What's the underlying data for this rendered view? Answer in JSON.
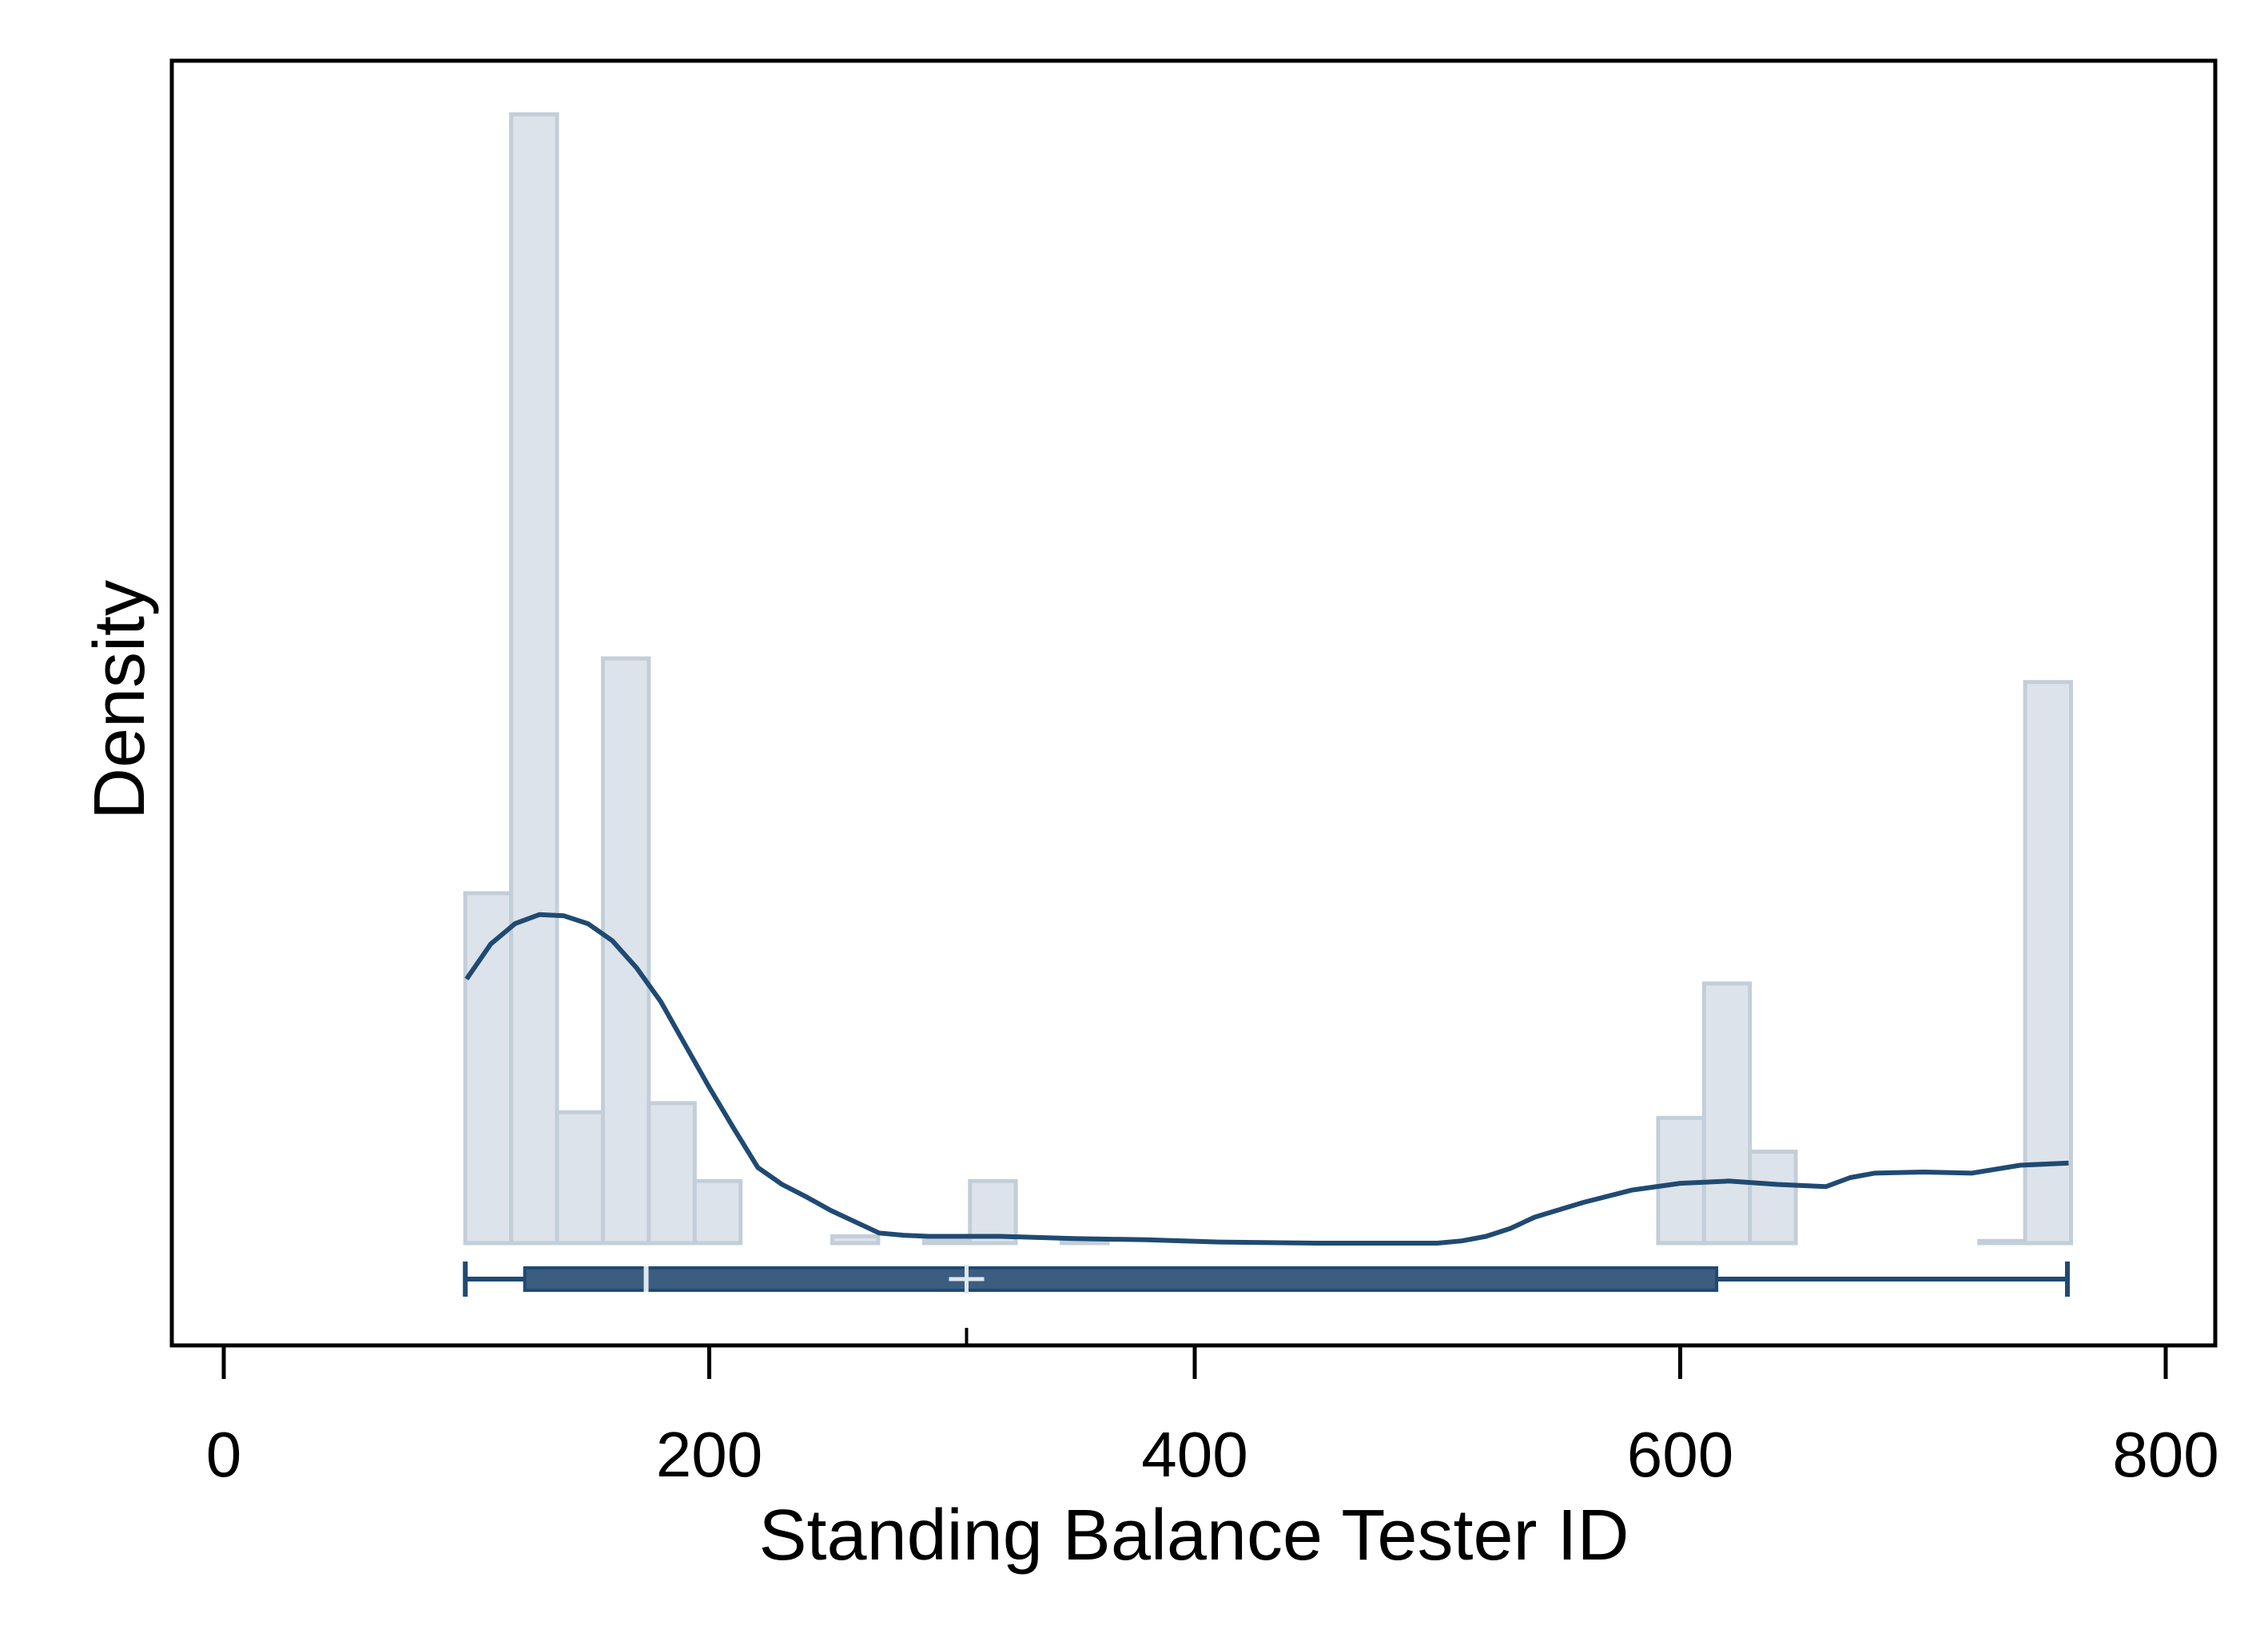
{
  "chart_data": {
    "type": "histogram",
    "xlabel": "Standing Balance Tester ID",
    "ylabel": "Density",
    "xlim": [
      -20,
      822
    ],
    "ylim": [
      0,
      1.0
    ],
    "x_ticks": [
      0,
      200,
      400,
      600,
      800
    ],
    "x_tick_labels": [
      "0",
      "200",
      "400",
      "600",
      "800"
    ],
    "grid": false,
    "colors": {
      "bar_fill": "#dde3ea",
      "bar_edge": "#c3ced8",
      "density_line": "#1f4a72",
      "box_fill": "#3b5d80",
      "box_edge": "#1f4a72",
      "median_mark": "#dfe6ed"
    },
    "bin_width": 18.9,
    "bins": [
      {
        "start": 99.5,
        "value": 0.31
      },
      {
        "start": 118.4,
        "value": 1.0
      },
      {
        "start": 137.3,
        "value": 0.116
      },
      {
        "start": 156.2,
        "value": 0.518
      },
      {
        "start": 175.1,
        "value": 0.124
      },
      {
        "start": 194.0,
        "value": 0.055
      },
      {
        "start": 250.7,
        "value": 0.006
      },
      {
        "start": 288.5,
        "value": 0.002
      },
      {
        "start": 307.4,
        "value": 0.055
      },
      {
        "start": 345.2,
        "value": 0.002
      },
      {
        "start": 590.9,
        "value": 0.111
      },
      {
        "start": 609.8,
        "value": 0.23
      },
      {
        "start": 628.7,
        "value": 0.081
      },
      {
        "start": 723.2,
        "value": 0.002
      },
      {
        "start": 742.1,
        "value": 0.497
      }
    ],
    "density": {
      "x": [
        100,
        110,
        120,
        130,
        140,
        150,
        160,
        170,
        180,
        190,
        200,
        210,
        220,
        230,
        240,
        250,
        260,
        270,
        280,
        290,
        300,
        320,
        350,
        380,
        410,
        450,
        480,
        500,
        510,
        520,
        530,
        540,
        560,
        580,
        600,
        620,
        640,
        660,
        670,
        680,
        700,
        720,
        740,
        760
      ],
      "y": [
        0.234,
        0.265,
        0.283,
        0.291,
        0.29,
        0.283,
        0.268,
        0.244,
        0.214,
        0.176,
        0.138,
        0.102,
        0.067,
        0.052,
        0.041,
        0.029,
        0.019,
        0.009,
        0.007,
        0.006,
        0.006,
        0.006,
        0.004,
        0.003,
        0.001,
        0.0,
        0.0,
        0.0,
        0.002,
        0.006,
        0.013,
        0.023,
        0.036,
        0.047,
        0.053,
        0.055,
        0.052,
        0.05,
        0.058,
        0.062,
        0.063,
        0.062,
        0.069,
        0.071
      ]
    },
    "boxplot": {
      "min": 99.5,
      "q1": 124,
      "median": 174,
      "mean": 306,
      "q3": 615,
      "max": 759.5
    }
  }
}
